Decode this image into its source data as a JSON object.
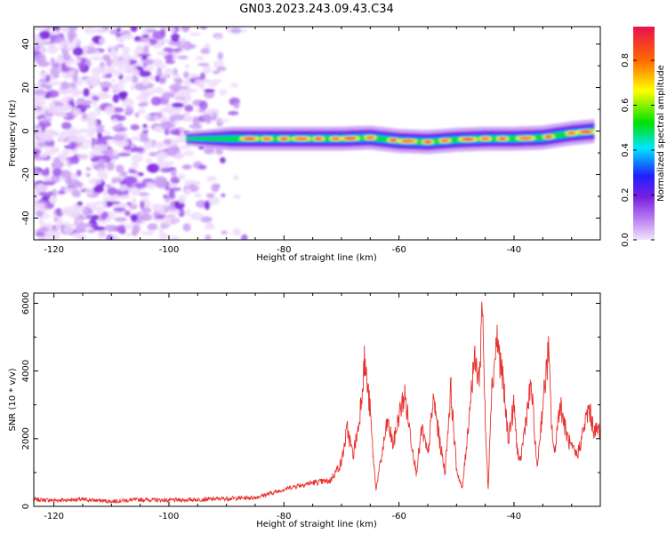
{
  "title": "GN03.2023.243.09.43.C34",
  "chart_data": [
    {
      "type": "heatmap",
      "xlabel": "Height of straight line (km)",
      "ylabel": "Frequency (Hz)",
      "xlim": [
        -123.5,
        -25
      ],
      "ylim": [
        -50,
        48
      ],
      "xticks": [
        -120,
        -100,
        -80,
        -60,
        -40
      ],
      "yticks": [
        -40,
        -20,
        0,
        20,
        40
      ],
      "colorbar": {
        "label": "Normalized spectral amplitude",
        "range": [
          0,
          0.95
        ],
        "ticks": [
          0.0,
          0.2,
          0.4,
          0.6,
          0.8
        ],
        "colormap": "rainbow",
        "colors": [
          "#e9d3fb",
          "#8a2be2",
          "#2020ff",
          "#00e5ff",
          "#00e000",
          "#ffff00",
          "#ff6a00",
          "#e8104e"
        ]
      },
      "ridge": {
        "description_points_x": [
          -97,
          -90,
          -80,
          -70,
          -65,
          -60,
          -55,
          -50,
          -45,
          -40,
          -35,
          -30,
          -26
        ],
        "description_points_freq": [
          -3.5,
          -3.5,
          -3.5,
          -3.5,
          -3,
          -4.5,
          -5,
          -4,
          -3.5,
          -3.5,
          -3,
          -1,
          0
        ]
      },
      "grid": false
    },
    {
      "type": "line",
      "xlabel": "Height of straight line (km)",
      "ylabel": "SNR (10 * v/v)",
      "xlim": [
        -123.5,
        -25
      ],
      "ylim": [
        0,
        6300
      ],
      "xticks": [
        -120,
        -100,
        -80,
        -60,
        -40
      ],
      "yticks": [
        0,
        2000,
        4000,
        6000
      ],
      "color": "#e8302e",
      "grid": false,
      "series": [
        {
          "x": [
            -123.5,
            -120,
            -115,
            -110,
            -105,
            -100,
            -95,
            -90,
            -85,
            -82,
            -80,
            -78,
            -75,
            -72,
            -70,
            -69,
            -68,
            -67,
            -66,
            -65,
            -64.5,
            -64,
            -63,
            -62,
            -61,
            -60,
            -59,
            -58,
            -57,
            -56,
            -55,
            -54,
            -53,
            -52,
            -51,
            -50,
            -49,
            -48,
            -47,
            -46,
            -45.5,
            -45,
            -44.5,
            -44,
            -43,
            -42,
            -41,
            -40,
            -39.5,
            -39,
            -38,
            -37,
            -36,
            -35,
            -34,
            -33.5,
            -33,
            -32,
            -31,
            -30,
            -29,
            -28,
            -27,
            -26,
            -25
          ],
          "values": [
            200,
            180,
            200,
            150,
            200,
            180,
            200,
            230,
            260,
            400,
            500,
            600,
            700,
            750,
            1300,
            2300,
            1500,
            2400,
            4300,
            2800,
            1500,
            500,
            1500,
            2500,
            1800,
            2700,
            3300,
            2100,
            1000,
            2300,
            1500,
            3200,
            2000,
            1000,
            3500,
            1100,
            500,
            2300,
            4300,
            3800,
            6300,
            2400,
            500,
            3200,
            5000,
            3800,
            2000,
            3000,
            1800,
            1200,
            2500,
            3600,
            1100,
            3000,
            4600,
            2500,
            1500,
            3100,
            2200,
            1700,
            1500,
            2200,
            2900,
            2200,
            2300
          ]
        }
      ]
    }
  ]
}
